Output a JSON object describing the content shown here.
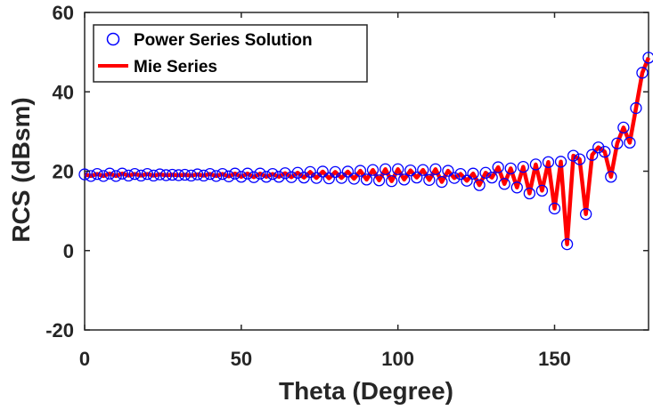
{
  "chart_data": {
    "type": "line",
    "xlabel": "Theta (Degree)",
    "ylabel": "RCS (dBsm)",
    "xlim": [
      0,
      180
    ],
    "ylim": [
      -20,
      60
    ],
    "x_ticks": [
      0,
      50,
      100,
      150
    ],
    "y_ticks": [
      -20,
      0,
      20,
      40,
      60
    ],
    "x_tick_labels": [
      "0",
      "50",
      "100",
      "150"
    ],
    "y_tick_labels": [
      "-20",
      "0",
      "20",
      "40",
      "60"
    ],
    "grid": false,
    "legend_position": "top-left",
    "colors": {
      "mie": "#ff0000",
      "power": "#0000ff",
      "axis": "#262626"
    },
    "series": [
      {
        "name": "Power Series Solution",
        "marker": "circle-open",
        "x": [
          0,
          2,
          4,
          6,
          8,
          10,
          12,
          14,
          16,
          18,
          20,
          22,
          24,
          26,
          28,
          30,
          32,
          34,
          36,
          38,
          40,
          42,
          44,
          46,
          48,
          50,
          52,
          54,
          56,
          58,
          60,
          62,
          64,
          66,
          68,
          70,
          72,
          74,
          76,
          78,
          80,
          82,
          84,
          86,
          88,
          90,
          92,
          94,
          96,
          98,
          100,
          102,
          104,
          106,
          108,
          110,
          112,
          114,
          116,
          118,
          120,
          122,
          124,
          126,
          128,
          130,
          132,
          134,
          136,
          138,
          140,
          142,
          144,
          146,
          148,
          150,
          152,
          154,
          156,
          158,
          160,
          162,
          164,
          166,
          168,
          170,
          172,
          174,
          176,
          178,
          180
        ],
        "y": [
          19.2,
          18.8,
          19.3,
          18.8,
          19.4,
          18.8,
          19.4,
          18.9,
          19.3,
          18.9,
          19.3,
          18.9,
          19.2,
          19.0,
          19.1,
          19.0,
          19.1,
          18.9,
          19.2,
          18.9,
          19.3,
          18.8,
          19.3,
          18.7,
          19.4,
          18.6,
          19.4,
          18.5,
          19.4,
          18.6,
          19.3,
          18.6,
          19.5,
          18.5,
          19.6,
          18.4,
          19.8,
          18.3,
          19.9,
          18.2,
          19.8,
          18.3,
          19.9,
          18.1,
          20.1,
          17.9,
          20.3,
          17.7,
          20.5,
          17.5,
          20.5,
          17.9,
          20.2,
          18.4,
          20.3,
          17.8,
          20.5,
          17.3,
          20.1,
          18.3,
          19.3,
          17.6,
          19.4,
          16.5,
          19.6,
          18.4,
          21.0,
          16.8,
          20.7,
          15.9,
          21.1,
          14.4,
          21.7,
          15.1,
          22.3,
          10.6,
          22.4,
          1.6,
          23.9,
          23.0,
          9.2,
          24.1,
          26.0,
          24.9,
          18.6,
          27.0,
          31.0,
          27.2,
          35.9,
          44.8,
          48.6
        ]
      },
      {
        "name": "Mie Series",
        "line": "solid",
        "x": [
          0,
          2,
          4,
          6,
          8,
          10,
          12,
          14,
          16,
          18,
          20,
          22,
          24,
          26,
          28,
          30,
          32,
          34,
          36,
          38,
          40,
          42,
          44,
          46,
          48,
          50,
          52,
          54,
          56,
          58,
          60,
          62,
          64,
          66,
          68,
          70,
          72,
          74,
          76,
          78,
          80,
          82,
          84,
          86,
          88,
          90,
          92,
          94,
          96,
          98,
          100,
          102,
          104,
          106,
          108,
          110,
          112,
          114,
          116,
          118,
          120,
          122,
          124,
          126,
          128,
          130,
          132,
          134,
          136,
          138,
          140,
          142,
          144,
          146,
          148,
          150,
          152,
          154,
          156,
          158,
          160,
          162,
          164,
          166,
          168,
          170,
          172,
          174,
          176,
          178,
          180
        ],
        "y": [
          19.2,
          18.8,
          19.3,
          18.8,
          19.4,
          18.8,
          19.4,
          18.9,
          19.3,
          18.9,
          19.3,
          18.9,
          19.2,
          19.0,
          19.1,
          19.0,
          19.1,
          18.9,
          19.2,
          18.9,
          19.3,
          18.8,
          19.3,
          18.7,
          19.4,
          18.6,
          19.4,
          18.5,
          19.4,
          18.6,
          19.3,
          18.6,
          19.5,
          18.5,
          19.6,
          18.4,
          19.8,
          18.3,
          19.9,
          18.2,
          19.8,
          18.3,
          19.9,
          18.1,
          20.1,
          17.9,
          20.3,
          17.7,
          20.5,
          17.5,
          20.5,
          17.9,
          20.2,
          18.4,
          20.3,
          17.8,
          20.5,
          17.3,
          20.1,
          18.3,
          19.3,
          17.6,
          19.4,
          16.5,
          19.6,
          18.4,
          21.0,
          16.8,
          20.7,
          15.9,
          21.1,
          14.4,
          21.7,
          15.1,
          22.3,
          10.6,
          22.4,
          1.6,
          23.9,
          23.0,
          9.2,
          24.1,
          26.0,
          24.9,
          18.6,
          27.0,
          31.0,
          27.2,
          35.9,
          44.8,
          48.6
        ]
      }
    ]
  }
}
